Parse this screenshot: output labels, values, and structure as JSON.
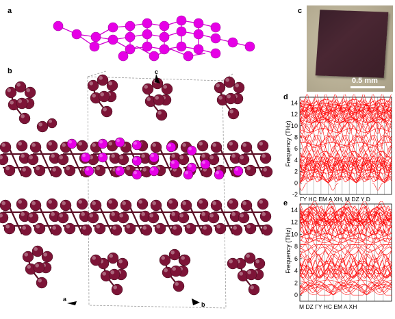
{
  "panels": {
    "a": "a",
    "b": "b",
    "c": "c",
    "d": "d",
    "e": "e"
  },
  "photo": {
    "scale_label": "0.5  mm"
  },
  "axes_labels": {
    "c": "c",
    "a": "a",
    "b": "b"
  },
  "colors": {
    "bp_atom": "#7d1437",
    "highlight_atom": "#e600e6",
    "phonon_line": "#ff0000"
  },
  "chart_data": [
    {
      "type": "line",
      "panel": "d",
      "ylabel": "Frequency (THz)",
      "ylim": [
        -2,
        15
      ],
      "yticks": [
        -2,
        0,
        2,
        4,
        6,
        8,
        10,
        12,
        14
      ],
      "xtick_labels": [
        "Γ",
        "Y",
        "H",
        "C",
        "E",
        "M",
        "A",
        "X",
        "H",
        "M",
        "D",
        "Z",
        "Y",
        "D"
      ],
      "x_label_text": "ΓY  HC EM A XH,  M  DZ   Y  D"
    },
    {
      "type": "line",
      "panel": "e",
      "ylabel": "Frequency (THz)",
      "ylim": [
        -1,
        15
      ],
      "yticks": [
        0,
        2,
        4,
        6,
        8,
        10,
        12,
        14
      ],
      "xtick_labels": [
        "M",
        "D",
        "Z",
        "Γ",
        "Y",
        "H",
        "C",
        "E",
        "M",
        "A",
        "X",
        "H"
      ],
      "x_label_text": "M   DZ    ΓY    HC   EM A   XH"
    }
  ]
}
